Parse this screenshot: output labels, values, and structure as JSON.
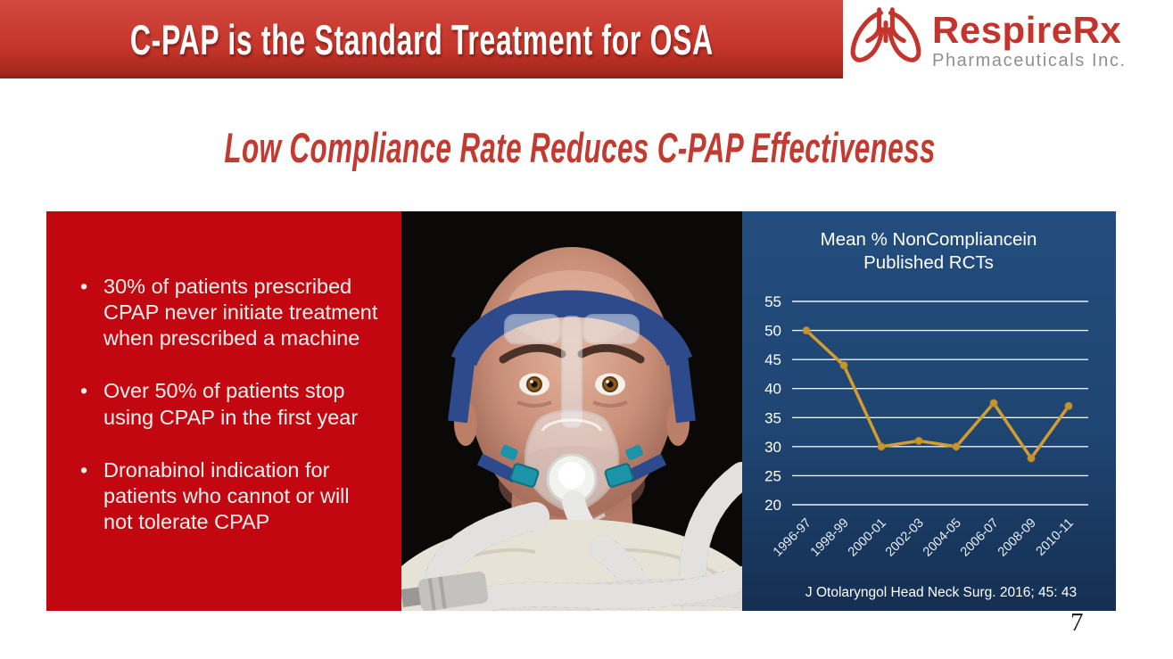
{
  "slide": {
    "title": "C-PAP is the Standard Treatment for OSA",
    "subtitle": "Low Compliance Rate Reduces C-PAP Effectiveness",
    "page_number": "7"
  },
  "logo": {
    "name": "RespireRx",
    "tagline": "Pharmaceuticals Inc.",
    "icon": "lungs-icon"
  },
  "content": {
    "bullets": [
      "30% of patients prescribed CPAP never initiate treatment when prescribed a machine",
      "Over 50% of patients stop using CPAP in the first year",
      "Dronabinol indication for patients who cannot or will not tolerate CPAP"
    ],
    "photo_description": "startled bald man wearing CPAP mask with blue headgear and gray corrugated hoses"
  },
  "chart_data": {
    "type": "line",
    "title_lines": [
      "Mean % NonCompliancein",
      "Published RCTs"
    ],
    "categories": [
      "1996-97",
      "1998-99",
      "2000-01",
      "2002-03",
      "2004-05",
      "2006-07",
      "2008-09",
      "2010-11"
    ],
    "values": [
      50,
      44,
      30,
      31,
      30,
      37.5,
      28,
      37
    ],
    "yticks": [
      55,
      50,
      45,
      40,
      35,
      30,
      25,
      20
    ],
    "ylim": [
      20,
      55
    ],
    "grid": true,
    "legend": "none",
    "xlabel": "",
    "ylabel": "",
    "citation": "J Otolaryngol Head Neck Surg. 2016; 45: 43",
    "line_color": "#d39c2f",
    "marker_color": "#c6952f",
    "grid_color": "#eaf0f8",
    "text_color": "#ffffff"
  },
  "colors": {
    "banner_red": "#c53529",
    "panel_red": "#c30710",
    "panel_blue": "#1f4572",
    "logo_red": "#c5342c",
    "logo_gray": "#8f8f8f",
    "subtitle_red": "#c23a30",
    "line_gold": "#d39c2f"
  }
}
